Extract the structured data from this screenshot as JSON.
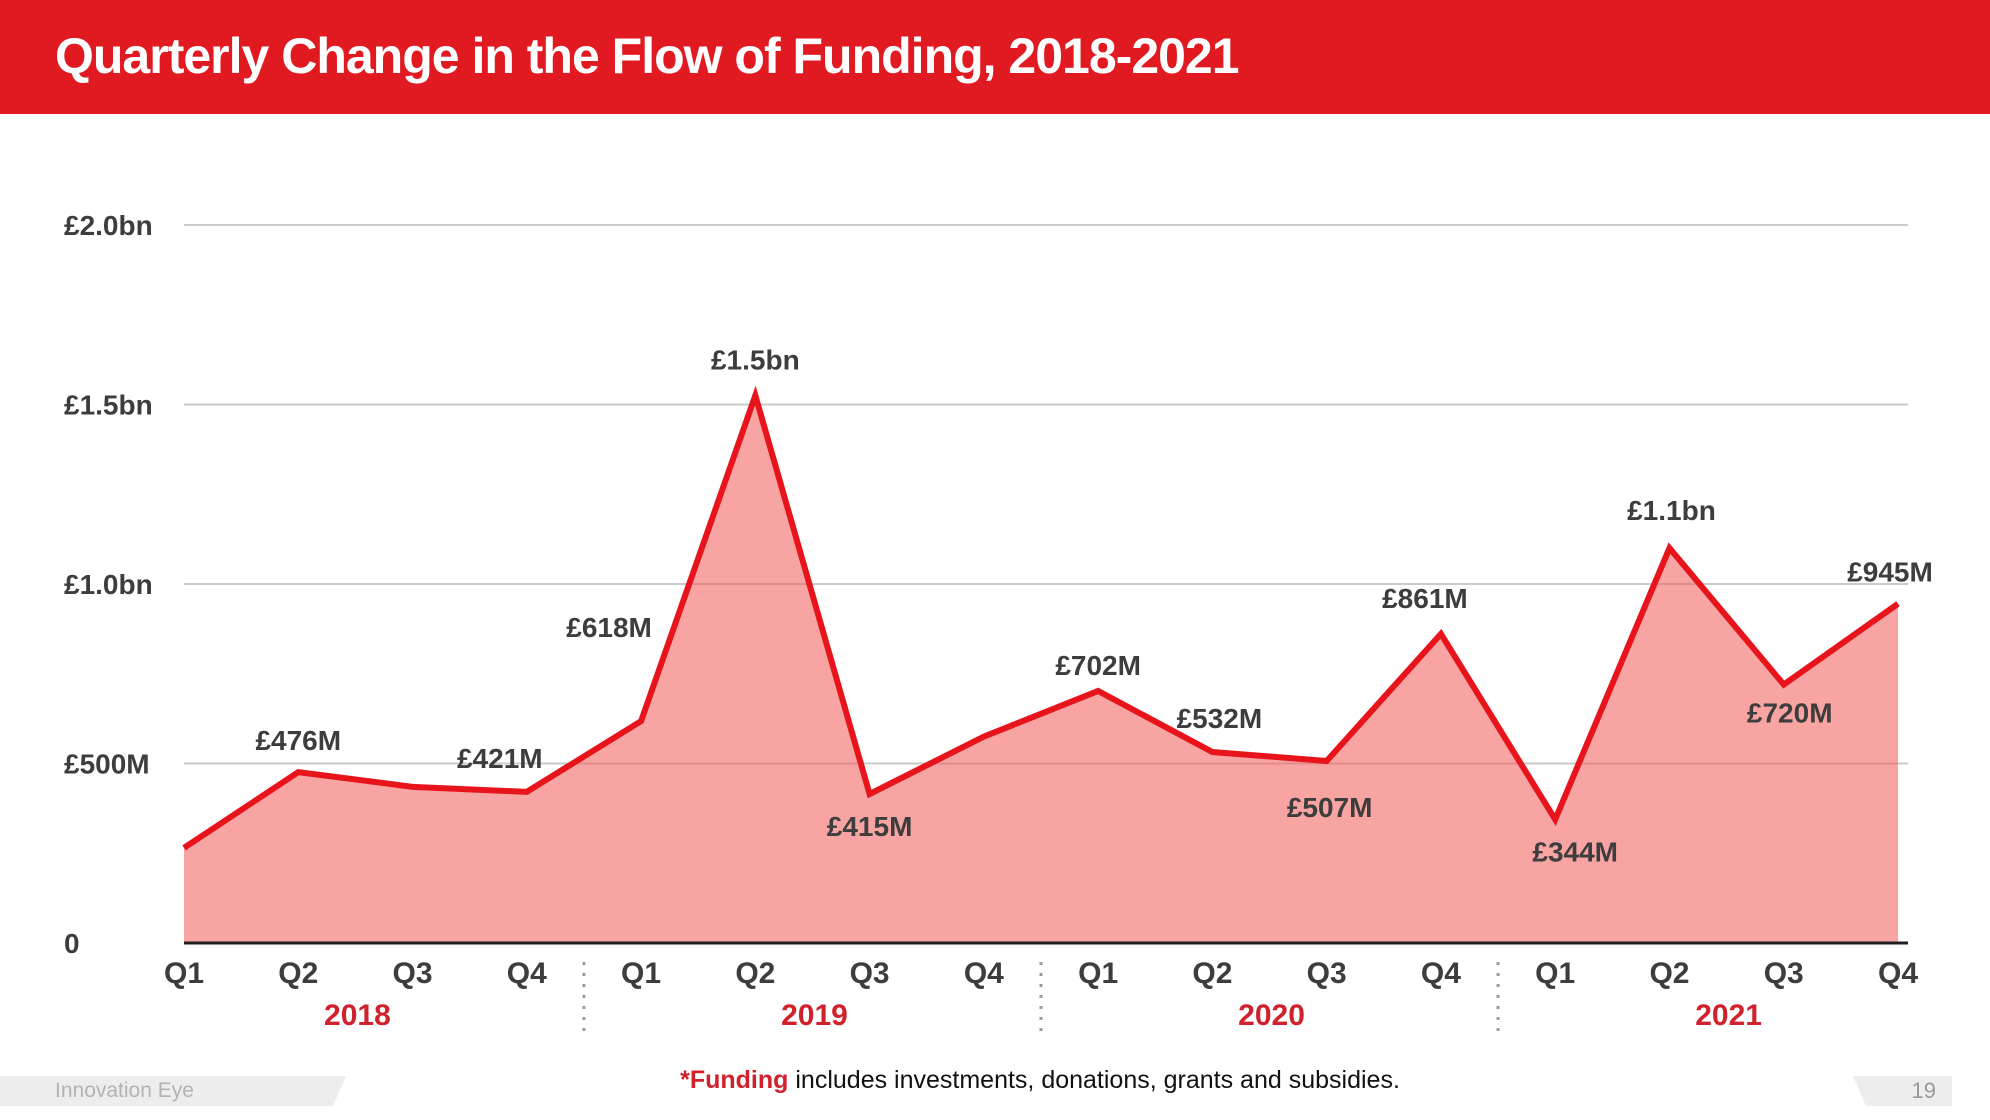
{
  "header": {
    "title": "Quarterly Change in the Flow of Funding, 2018-2021"
  },
  "colors": {
    "banner_red": "#e11a21",
    "line_red": "#e8141c",
    "area_fill": "rgba(242,90,85,0.55)",
    "year_red": "#d0212c",
    "label_gray": "#3d3d3d",
    "gridline": "#cbcbcb",
    "baseline": "#1f1f1f",
    "separator": "#9a9a9a"
  },
  "chart_data": {
    "type": "area",
    "title": "Quarterly Change in the Flow of Funding, 2018-2021",
    "ylabel": "",
    "xlabel": "",
    "unit": "GBP millions",
    "grid": true,
    "legend": false,
    "ylim": [
      0,
      2000
    ],
    "categories": [
      "Q1",
      "Q2",
      "Q3",
      "Q4",
      "Q1",
      "Q2",
      "Q3",
      "Q4",
      "Q1",
      "Q2",
      "Q3",
      "Q4",
      "Q1",
      "Q2",
      "Q3",
      "Q4"
    ],
    "year_groups": [
      {
        "label": "2018",
        "span": [
          0,
          3
        ]
      },
      {
        "label": "2019",
        "span": [
          4,
          7
        ]
      },
      {
        "label": "2020",
        "span": [
          8,
          11
        ]
      },
      {
        "label": "2021",
        "span": [
          12,
          15
        ]
      }
    ],
    "values_millions": [
      265,
      476,
      435,
      421,
      618,
      1525,
      415,
      575,
      702,
      532,
      507,
      861,
      344,
      1100,
      720,
      945
    ],
    "point_labels": [
      "",
      "£476M",
      "",
      "£421M",
      "£618M",
      "£1.5bn",
      "£415M",
      "",
      "£702M",
      "£532M",
      "£507M",
      "£861M",
      "£344M",
      "£1.1bn",
      "£720M",
      "£945M"
    ],
    "y_ticks": [
      {
        "label": "£2.0bn",
        "value": 2000
      },
      {
        "label": "£1.5bn",
        "value": 1500
      },
      {
        "label": "£1.0bn",
        "value": 1000
      },
      {
        "label": "£500M",
        "value": 500
      },
      {
        "label": "0",
        "value": 0
      }
    ]
  },
  "footer": {
    "footnote_lead": "*Funding",
    "footnote_rest": " includes investments, donations, grants and subsidies.",
    "brand": "Innovation Eye",
    "page_number": "19"
  }
}
